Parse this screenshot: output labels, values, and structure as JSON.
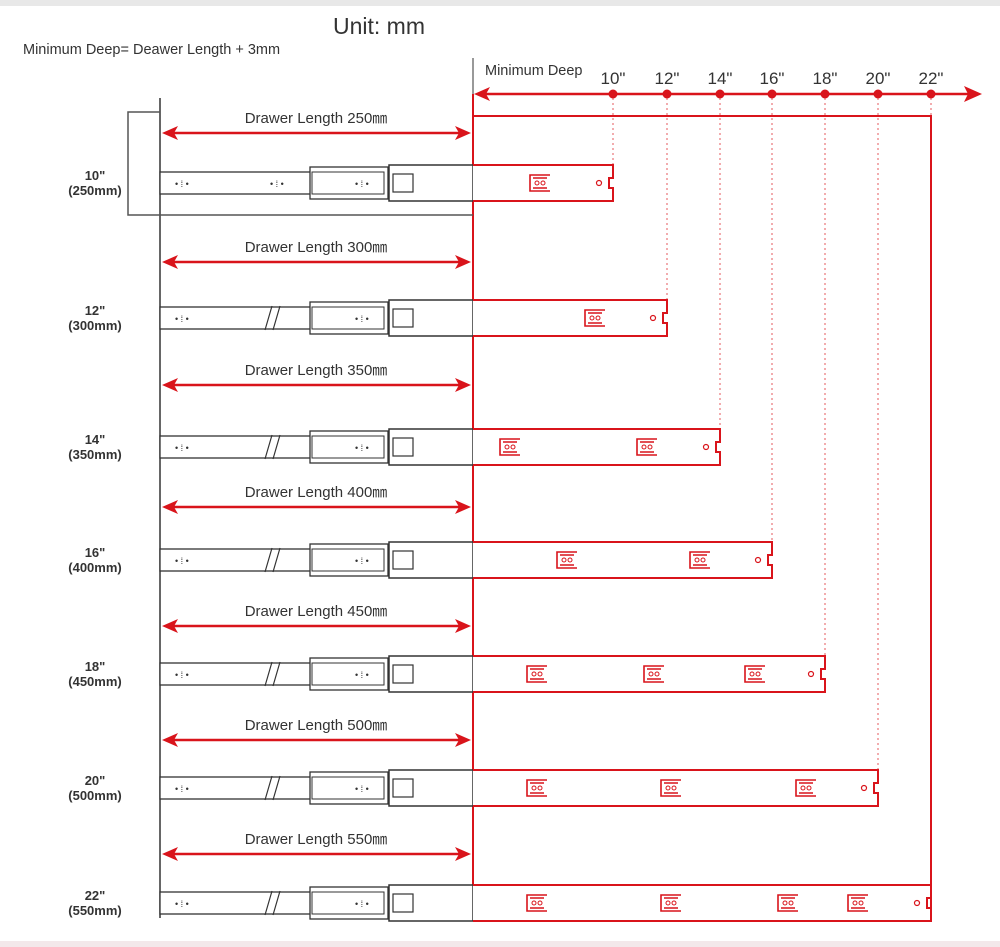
{
  "unit_title": "Unit: mm",
  "formula": "Minimum Deep= Deawer Length + 3mm",
  "scale": {
    "label": "Minimum Deep",
    "ticks": [
      "10\"",
      "12\"",
      "14\"",
      "16\"",
      "18\"",
      "20\"",
      "22\""
    ]
  },
  "colors": {
    "red": "#d9141b",
    "dark": "#333333",
    "frame": "#e8e8e8"
  },
  "rows": [
    {
      "size": "10\"",
      "mm": "(250mm)",
      "length_label": "Drawer Length 250㎜"
    },
    {
      "size": "12\"",
      "mm": "(300mm)",
      "length_label": "Drawer Length 300㎜"
    },
    {
      "size": "14\"",
      "mm": "(350mm)",
      "length_label": "Drawer Length 350㎜"
    },
    {
      "size": "16\"",
      "mm": "(400mm)",
      "length_label": "Drawer Length 400㎜"
    },
    {
      "size": "18\"",
      "mm": "(450mm)",
      "length_label": "Drawer Length 450㎜"
    },
    {
      "size": "20\"",
      "mm": "(500mm)",
      "length_label": "Drawer Length 500㎜"
    },
    {
      "size": "22\"",
      "mm": "(550mm)",
      "length_label": "Drawer Length 550㎜"
    }
  ]
}
